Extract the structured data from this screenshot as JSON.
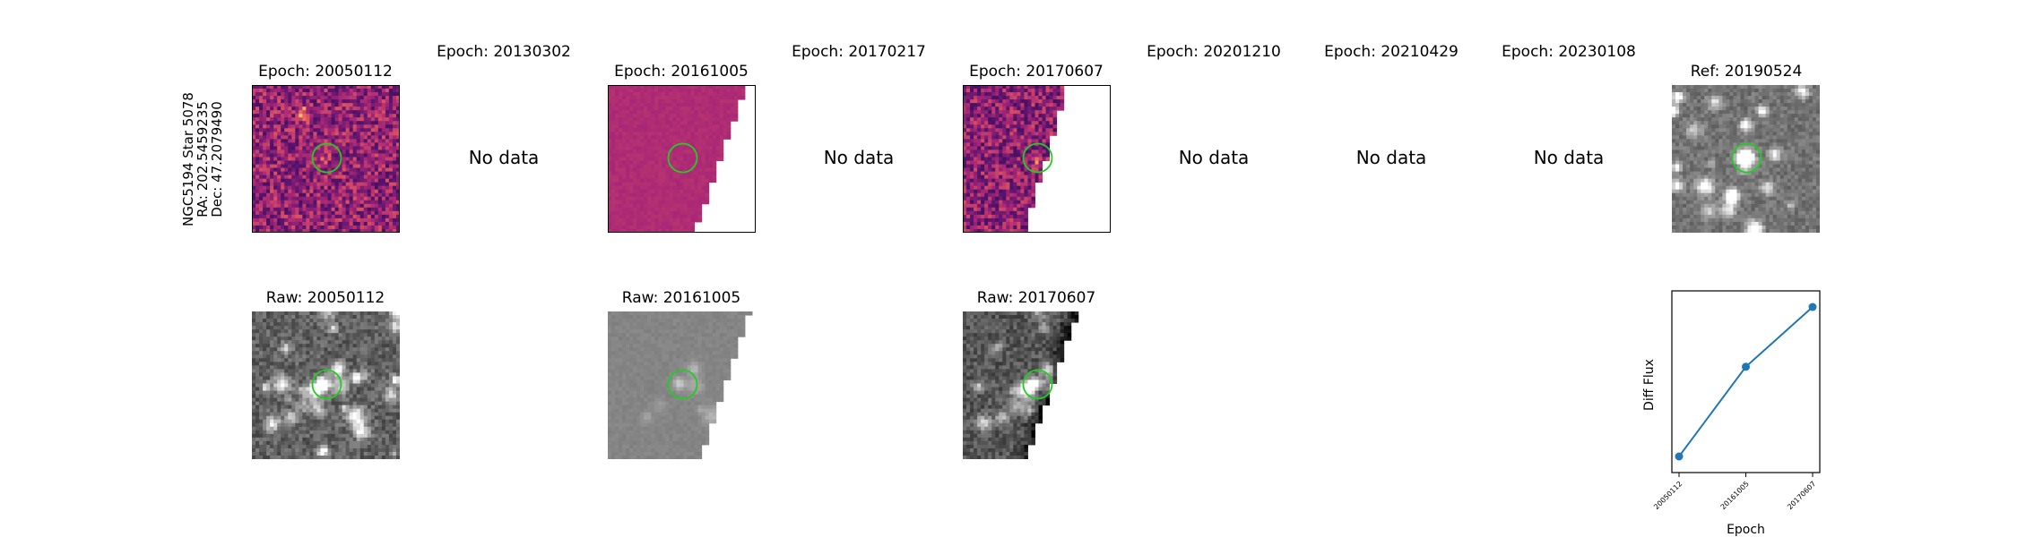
{
  "star_label": {
    "name": "NGC5194 Star 5078",
    "ra": "RA: 202.5459235",
    "dec": "Dec: 47.2079490"
  },
  "epoch_titles": [
    "Epoch: 20050112",
    "Epoch: 20130302",
    "Epoch: 20161005",
    "Epoch: 20170217",
    "Epoch: 20170607",
    "Epoch: 20201210",
    "Epoch: 20210429",
    "Epoch: 20230108"
  ],
  "ref_title": "Ref: 20190524",
  "no_data_text": "No data",
  "raw_titles": [
    "Raw: 20050112",
    "Raw: 20161005",
    "Raw: 20170607"
  ],
  "colors": {
    "aperture": "#22cc22",
    "series": "#1f77b4"
  },
  "chart_data": {
    "type": "line",
    "x": [
      "20050112",
      "20161005",
      "20170607"
    ],
    "series": [
      {
        "values": [
          0.0,
          0.6,
          1.0
        ]
      }
    ],
    "xlabel": "Epoch",
    "ylabel": "Diff Flux",
    "grid": false
  }
}
